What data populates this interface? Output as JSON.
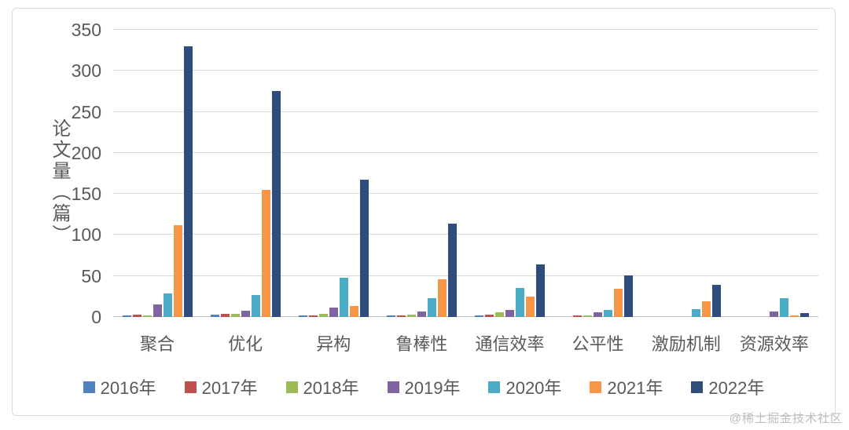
{
  "watermark": "@稀土掘金技术社区",
  "colors": {
    "grid": "#d9d9d9",
    "axis": "#bfbfbf",
    "text": "#595959",
    "card_border": "#d9d9d9",
    "watermark": "#bdbdbd"
  },
  "chart_data": {
    "type": "bar",
    "title": "",
    "xlabel": "",
    "ylabel": "论文量（篇）",
    "ylim": [
      0,
      350
    ],
    "ytick_step": 50,
    "grid": true,
    "legend_position": "bottom",
    "categories": [
      "聚合",
      "优化",
      "异构",
      "鲁棒性",
      "通信效率",
      "公平性",
      "激励机制",
      "资源效率"
    ],
    "series": [
      {
        "name": "2016年",
        "color": "#4F81BD",
        "values": [
          1,
          3,
          1,
          2,
          2,
          0,
          0,
          0
        ]
      },
      {
        "name": "2017年",
        "color": "#C0504D",
        "values": [
          3,
          4,
          1,
          2,
          3,
          1,
          0,
          0
        ]
      },
      {
        "name": "2018年",
        "color": "#9BBB59",
        "values": [
          2,
          4,
          4,
          3,
          6,
          2,
          0,
          0
        ]
      },
      {
        "name": "2019年",
        "color": "#8064A2",
        "values": [
          15,
          8,
          11,
          7,
          9,
          6,
          0,
          7
        ]
      },
      {
        "name": "2020年",
        "color": "#4BACC6",
        "values": [
          29,
          27,
          48,
          23,
          35,
          9,
          10,
          23
        ]
      },
      {
        "name": "2021年",
        "color": "#F79646",
        "values": [
          112,
          155,
          13,
          46,
          25,
          34,
          19,
          2
        ]
      },
      {
        "name": "2022年",
        "color": "#2E4D7B",
        "values": [
          330,
          275,
          167,
          114,
          64,
          51,
          39,
          5
        ]
      }
    ]
  }
}
